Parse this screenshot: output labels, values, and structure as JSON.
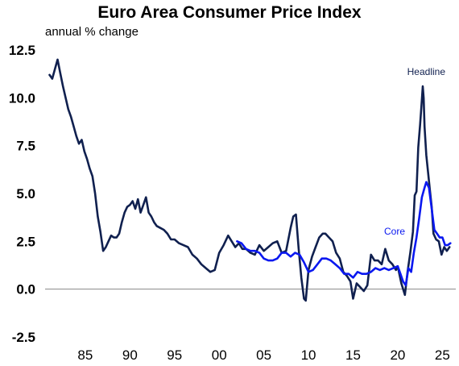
{
  "chart_data": {
    "type": "line",
    "title": "Euro Area Consumer Price Index",
    "subtitle": "annual % change",
    "xlabel": "",
    "ylabel": "",
    "xlim": [
      1980.5,
      2026.5
    ],
    "ylim": [
      -2.5,
      12.5
    ],
    "yticks": [
      "12.5",
      "10.0",
      "7.5",
      "5.0",
      "2.5",
      "0.0",
      "-2.5"
    ],
    "ytick_values": [
      12.5,
      10.0,
      7.5,
      5.0,
      2.5,
      0.0,
      -2.5
    ],
    "xticks": [
      "85",
      "90",
      "95",
      "00",
      "05",
      "10",
      "15",
      "20",
      "25"
    ],
    "xtick_values": [
      1985,
      1990,
      1995,
      2000,
      2005,
      2010,
      2015,
      2020,
      2025
    ],
    "zero_line": true,
    "series": [
      {
        "name": "Headline",
        "color": "#10204f",
        "x": [
          1981.0,
          1981.3,
          1981.6,
          1981.9,
          1982.2,
          1982.5,
          1982.8,
          1983.1,
          1983.4,
          1983.7,
          1984.0,
          1984.3,
          1984.6,
          1984.9,
          1985.2,
          1985.5,
          1985.8,
          1986.1,
          1986.4,
          1986.7,
          1987.0,
          1987.3,
          1987.6,
          1987.9,
          1988.2,
          1988.5,
          1988.8,
          1989.1,
          1989.4,
          1989.7,
          1990.0,
          1990.3,
          1990.6,
          1990.9,
          1991.2,
          1991.5,
          1991.8,
          1992.1,
          1992.4,
          1992.7,
          1993.0,
          1993.4,
          1993.8,
          1994.2,
          1994.6,
          1995.0,
          1995.5,
          1996.0,
          1996.5,
          1997.0,
          1997.5,
          1998.0,
          1998.5,
          1999.0,
          1999.5,
          2000.0,
          2000.5,
          2001.0,
          2001.4,
          2001.8,
          2002.2,
          2002.6,
          2003.0,
          2003.5,
          2004.0,
          2004.5,
          2005.0,
          2005.5,
          2006.0,
          2006.5,
          2007.0,
          2007.5,
          2008.0,
          2008.3,
          2008.6,
          2008.9,
          2009.2,
          2009.5,
          2009.7,
          2010.0,
          2010.4,
          2010.8,
          2011.2,
          2011.6,
          2011.9,
          2012.3,
          2012.7,
          2013.1,
          2013.5,
          2013.9,
          2014.3,
          2014.7,
          2015.0,
          2015.4,
          2015.8,
          2016.2,
          2016.6,
          2017.0,
          2017.4,
          2017.8,
          2018.2,
          2018.6,
          2019.0,
          2019.4,
          2019.8,
          2020.0,
          2020.4,
          2020.8,
          2021.1,
          2021.4,
          2021.7,
          2021.9,
          2022.1,
          2022.3,
          2022.5,
          2022.7,
          2022.8,
          2022.9,
          2023.0,
          2023.2,
          2023.4,
          2023.6,
          2023.8,
          2024.0,
          2024.3,
          2024.6,
          2024.9,
          2025.2,
          2025.5,
          2025.8
        ],
        "values": [
          11.2,
          11.0,
          11.5,
          12.0,
          11.3,
          10.6,
          10.0,
          9.4,
          9.0,
          8.5,
          8.0,
          7.6,
          7.8,
          7.2,
          6.8,
          6.3,
          5.9,
          5.0,
          3.8,
          3.0,
          2.0,
          2.2,
          2.5,
          2.8,
          2.7,
          2.7,
          2.9,
          3.5,
          4.0,
          4.3,
          4.4,
          4.6,
          4.2,
          4.7,
          4.0,
          4.4,
          4.8,
          4.0,
          3.8,
          3.5,
          3.3,
          3.2,
          3.1,
          2.9,
          2.6,
          2.6,
          2.4,
          2.3,
          2.2,
          1.8,
          1.6,
          1.3,
          1.1,
          0.9,
          1.0,
          1.9,
          2.3,
          2.8,
          2.5,
          2.2,
          2.4,
          2.1,
          2.1,
          1.9,
          1.8,
          2.3,
          2.0,
          2.2,
          2.4,
          2.5,
          1.9,
          2.0,
          3.2,
          3.8,
          3.9,
          2.1,
          0.6,
          -0.5,
          -0.6,
          1.0,
          1.7,
          2.2,
          2.7,
          2.9,
          2.9,
          2.7,
          2.5,
          1.9,
          1.6,
          0.9,
          0.7,
          0.4,
          -0.5,
          0.3,
          0.1,
          -0.1,
          0.2,
          1.8,
          1.5,
          1.5,
          1.3,
          2.1,
          1.5,
          1.3,
          1.0,
          1.2,
          0.3,
          -0.3,
          0.9,
          1.9,
          3.0,
          4.9,
          5.1,
          7.4,
          8.6,
          9.9,
          10.6,
          10.0,
          8.5,
          7.0,
          6.1,
          5.2,
          4.3,
          2.9,
          2.6,
          2.5,
          1.8,
          2.2,
          2.0,
          2.2
        ],
        "label": "Headline"
      },
      {
        "name": "Core",
        "color": "#0a18f0",
        "x": [
          2002.0,
          2002.5,
          2003.0,
          2003.5,
          2004.0,
          2004.5,
          2005.0,
          2005.5,
          2006.0,
          2006.5,
          2007.0,
          2007.5,
          2008.0,
          2008.5,
          2009.0,
          2009.5,
          2010.0,
          2010.5,
          2011.0,
          2011.5,
          2012.0,
          2012.5,
          2013.0,
          2013.5,
          2014.0,
          2014.5,
          2015.0,
          2015.5,
          2016.0,
          2016.5,
          2017.0,
          2017.5,
          2018.0,
          2018.5,
          2019.0,
          2019.5,
          2020.0,
          2020.3,
          2020.6,
          2020.9,
          2021.2,
          2021.5,
          2021.8,
          2022.1,
          2022.4,
          2022.7,
          2023.0,
          2023.2,
          2023.5,
          2023.8,
          2024.1,
          2024.4,
          2024.7,
          2025.0,
          2025.3,
          2025.6,
          2025.9
        ],
        "values": [
          2.5,
          2.4,
          2.1,
          2.0,
          2.0,
          1.9,
          1.6,
          1.5,
          1.5,
          1.6,
          1.9,
          1.9,
          1.7,
          1.9,
          1.8,
          1.4,
          0.9,
          1.0,
          1.3,
          1.6,
          1.6,
          1.5,
          1.3,
          1.1,
          0.8,
          0.8,
          0.6,
          0.9,
          0.8,
          0.8,
          0.9,
          1.1,
          1.0,
          1.1,
          1.0,
          1.1,
          1.2,
          0.8,
          0.4,
          0.2,
          1.1,
          0.9,
          1.9,
          2.7,
          3.7,
          4.8,
          5.3,
          5.6,
          5.3,
          4.2,
          3.1,
          2.9,
          2.7,
          2.7,
          2.3,
          2.3,
          2.4
        ],
        "label": "Core"
      }
    ]
  }
}
